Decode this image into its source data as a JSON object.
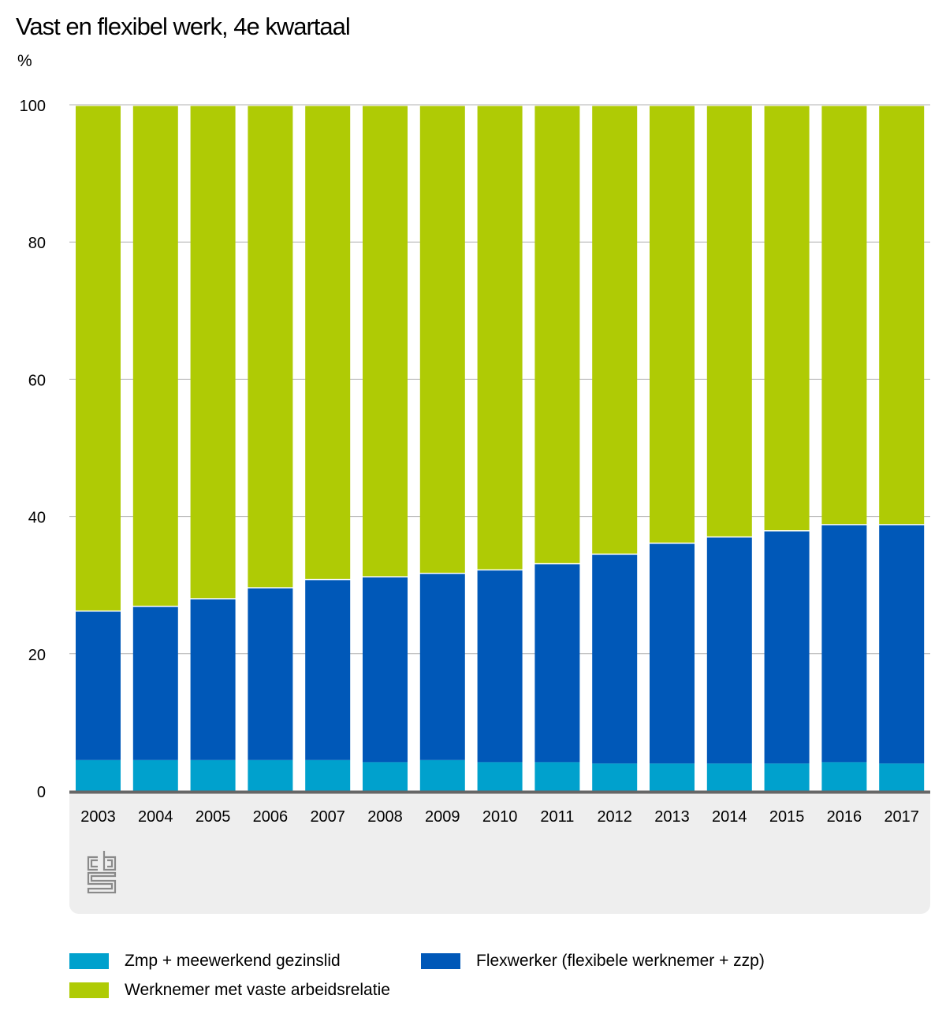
{
  "chart_data": {
    "type": "bar",
    "stacked": true,
    "title": "Vast en flexibel werk, 4e kwartaal",
    "ylabel": "%",
    "xlabel": "",
    "ylim": [
      0,
      100
    ],
    "yticks": [
      0,
      20,
      40,
      60,
      80,
      100
    ],
    "grid": true,
    "legend_position": "bottom",
    "categories": [
      "2003",
      "2004",
      "2005",
      "2006",
      "2007",
      "2008",
      "2009",
      "2010",
      "2011",
      "2012",
      "2013",
      "2014",
      "2015",
      "2016",
      "2017"
    ],
    "series": [
      {
        "name": "Zmp + meewerkend gezinslid",
        "color": "#00a1cd",
        "values": [
          4.5,
          4.5,
          4.5,
          4.5,
          4.5,
          4.2,
          4.5,
          4.2,
          4.2,
          4.0,
          4.0,
          4.0,
          4.0,
          4.2,
          4.0
        ]
      },
      {
        "name": "Flexwerker (flexibele werknemer + zzp)",
        "color": "#0058b8",
        "values": [
          21.8,
          22.5,
          23.6,
          25.2,
          26.4,
          27.1,
          27.3,
          28.1,
          29.0,
          30.6,
          32.2,
          33.1,
          34.0,
          34.7,
          34.9
        ]
      },
      {
        "name": "Werknemer met vaste arbeidsrelatie",
        "color": "#afcb05",
        "values": [
          73.7,
          73.0,
          71.9,
          70.3,
          69.1,
          68.7,
          68.2,
          67.7,
          66.8,
          65.4,
          63.8,
          62.9,
          62.0,
          61.1,
          61.1
        ]
      }
    ]
  },
  "legend": [
    {
      "label": "Zmp + meewerkend gezinslid",
      "color": "#00a1cd"
    },
    {
      "label": "Flexwerker (flexibele werknemer + zzp)",
      "color": "#0058b8"
    },
    {
      "label": "Werknemer met vaste arbeidsrelatie",
      "color": "#afcb05"
    }
  ],
  "logo": "cbs-logo-icon"
}
